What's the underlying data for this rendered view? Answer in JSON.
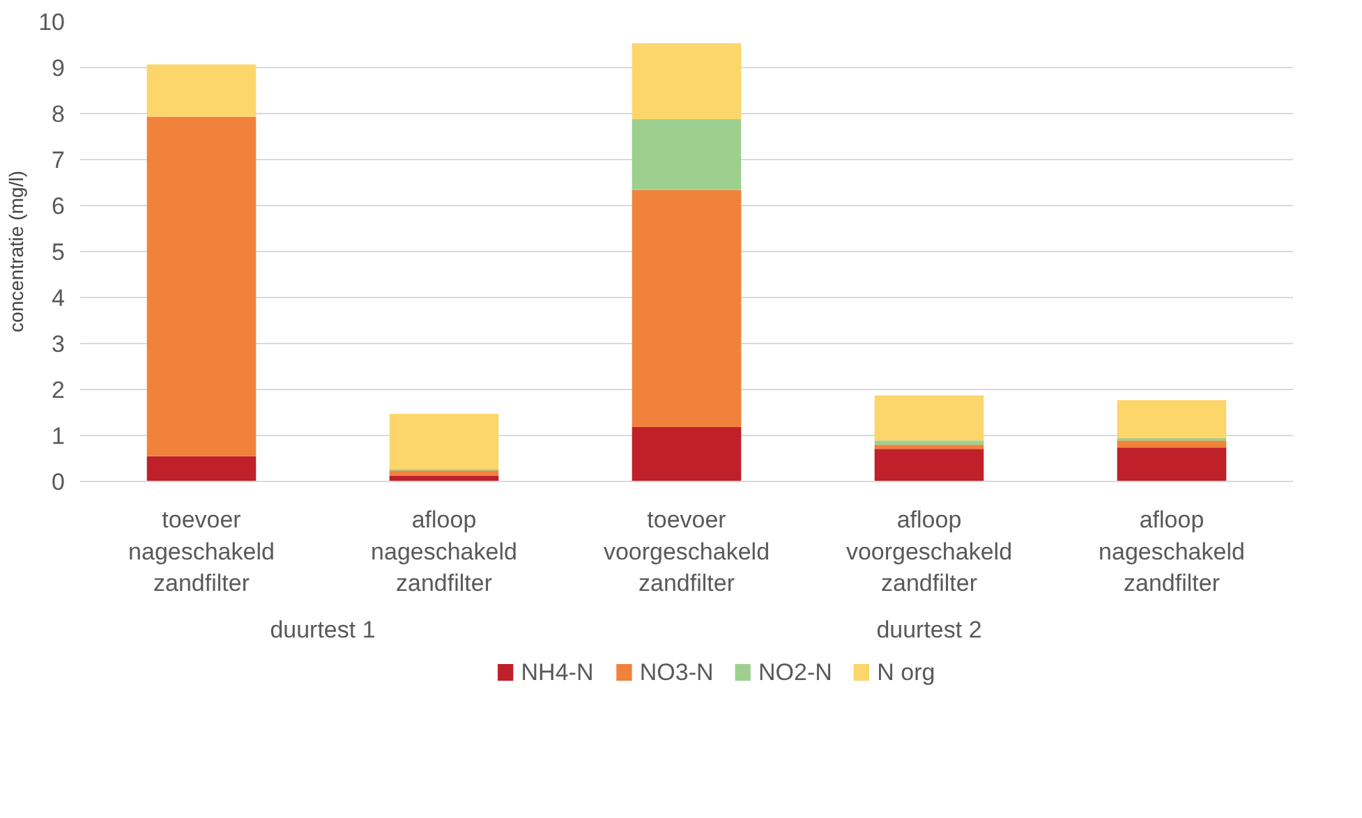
{
  "chart_data": {
    "type": "bar",
    "stacked": true,
    "ylabel": "concentratie (mg/l)",
    "categories": [
      "toevoer\nnageschakeld\nzandfilter",
      "afloop\nnageschakeld\nzandfilter",
      "toevoer\nvoorgeschakeld\nzandfilter",
      "afloop\nvoorgeschakeld\nzandfilter",
      "afloop\nnageschakeld\nzandfilter"
    ],
    "annotations": [
      "duurtest 1",
      "duurtest 2"
    ],
    "series": [
      {
        "name": "NH4-N",
        "color": "#c0202a",
        "values": [
          0.55,
          0.13,
          1.18,
          0.71,
          0.74
        ]
      },
      {
        "name": "NO3-N",
        "color": "#f0823c",
        "values": [
          7.38,
          0.11,
          5.16,
          0.09,
          0.15
        ]
      },
      {
        "name": "NO2-N",
        "color": "#9dd08f",
        "values": [
          0,
          0.03,
          1.54,
          0.09,
          0.05
        ]
      },
      {
        "name": "N org",
        "color": "#fcd56b",
        "values": [
          1.14,
          1.2,
          1.65,
          0.98,
          0.83
        ]
      }
    ],
    "ylim": [
      0,
      10
    ],
    "yticks": [
      0,
      1,
      2,
      3,
      4,
      5,
      6,
      7,
      8,
      9,
      10
    ],
    "grid": "y",
    "legend": "bottom"
  }
}
